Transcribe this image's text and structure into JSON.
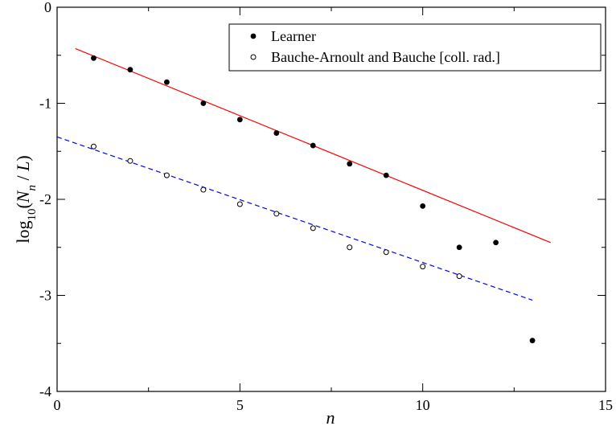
{
  "chart_data": {
    "type": "scatter",
    "xlabel": "n",
    "ylabel": {
      "prefix": "log",
      "base": "10",
      "open": "(",
      "N": "N",
      "sub": "n",
      "sep": " / ",
      "L": "L",
      "close": ")"
    },
    "xlim": [
      0,
      15
    ],
    "ylim": [
      -4,
      0
    ],
    "x_ticks": [
      0,
      5,
      10,
      15
    ],
    "x_tick_labels": [
      "0",
      "5",
      "10",
      "15"
    ],
    "y_ticks": [
      0,
      -1,
      -2,
      -3,
      -4
    ],
    "y_tick_labels": [
      "0",
      "-1",
      "-2",
      "-3",
      "-4"
    ],
    "grid": false,
    "legend_position": "top-right",
    "series": [
      {
        "name": "Learner",
        "marker": "filled-circle",
        "color": "#000000",
        "x": [
          1,
          2,
          3,
          4,
          5,
          6,
          7,
          8,
          9,
          10,
          11,
          12,
          13
        ],
        "y": [
          -0.53,
          -0.65,
          -0.78,
          -1.0,
          -1.17,
          -1.31,
          -1.44,
          -1.63,
          -1.75,
          -2.07,
          -2.5,
          -2.45,
          -3.47
        ]
      },
      {
        "name": "Bauche-Arnoult and Bauche [coll. rad.]",
        "marker": "open-circle",
        "color": "#000000",
        "x": [
          1,
          2,
          3,
          4,
          5,
          6,
          7,
          8,
          9,
          10,
          11
        ],
        "y": [
          -1.45,
          -1.6,
          -1.75,
          -1.9,
          -2.05,
          -2.15,
          -2.3,
          -2.5,
          -2.55,
          -2.7,
          -2.8
        ]
      }
    ],
    "fit_lines": [
      {
        "style": "solid",
        "color": "#ff0000",
        "x": [
          0.5,
          13.5
        ],
        "y": [
          -0.43,
          -2.45
        ]
      },
      {
        "style": "dashed",
        "color": "#0000ff",
        "x": [
          0,
          13
        ],
        "y": [
          -1.35,
          -3.05
        ]
      }
    ]
  }
}
